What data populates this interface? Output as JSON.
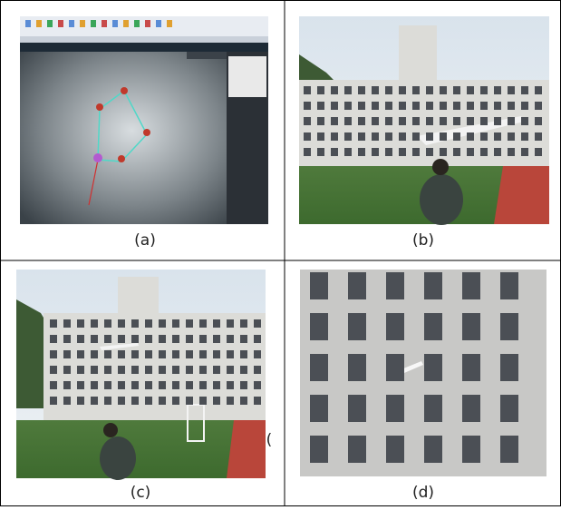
{
  "panels": [
    {
      "caption": "(a)"
    },
    {
      "caption": "(b)"
    },
    {
      "caption": "(c)",
      "stray_mark": "("
    },
    {
      "caption": "(d)"
    }
  ]
}
